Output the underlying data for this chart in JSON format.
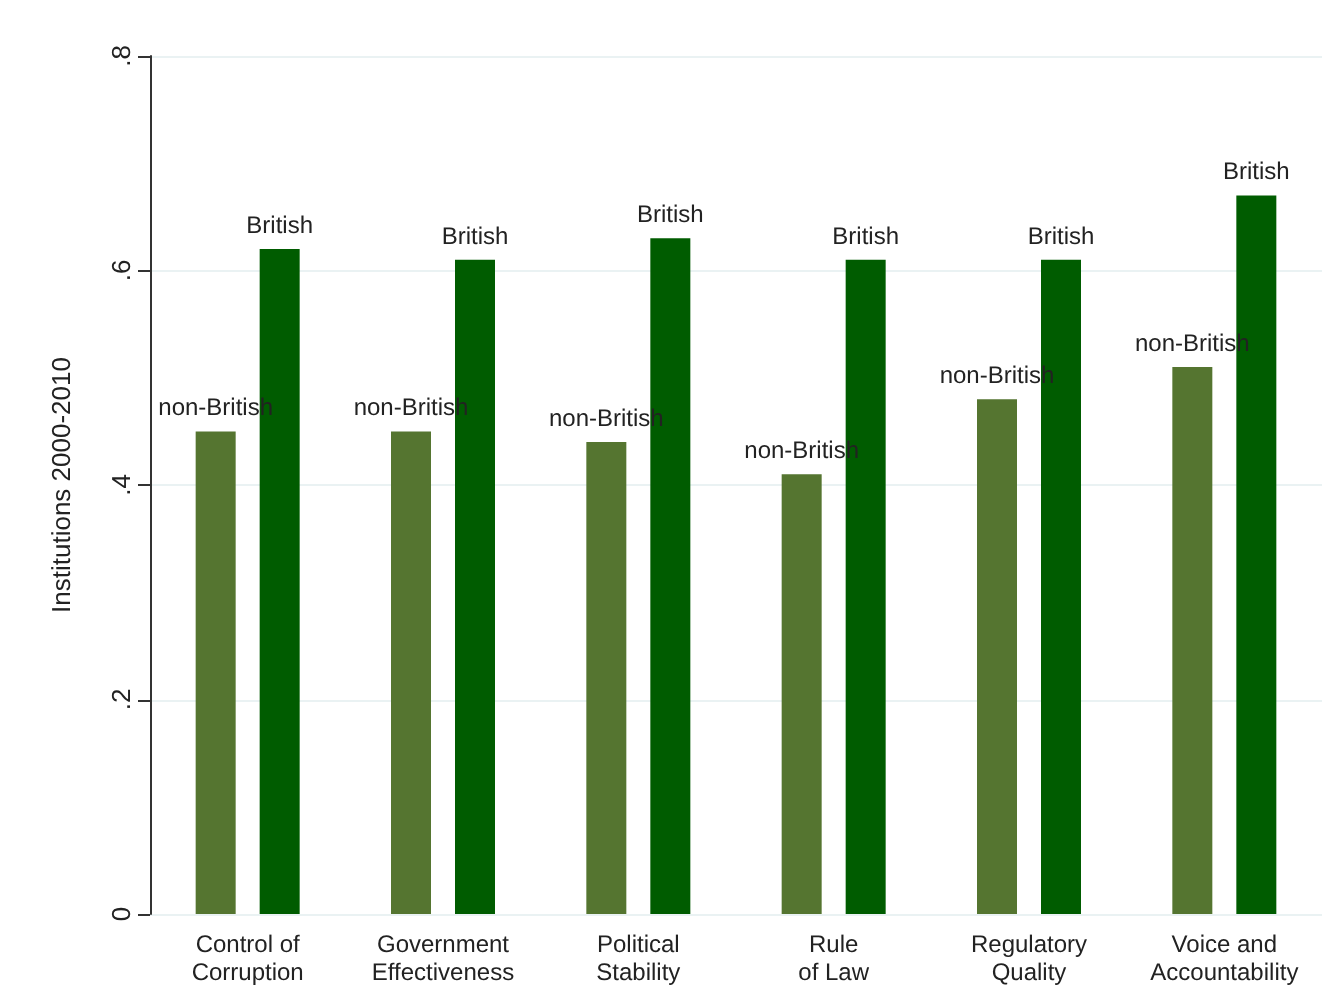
{
  "chart_data": {
    "type": "bar",
    "ylabel": "Institutions 2000-2010",
    "categories": [
      "Control of\nCorruption",
      "Government\nEffectiveness",
      "Political\nStability",
      "Rule\nof Law",
      "Regulatory\nQuality",
      "Voice and\nAccountability"
    ],
    "series": [
      {
        "name": "non-British",
        "color": "#557530",
        "values": [
          0.45,
          0.45,
          0.44,
          0.41,
          0.48,
          0.51
        ]
      },
      {
        "name": "British",
        "color": "#005c00",
        "values": [
          0.62,
          0.61,
          0.63,
          0.61,
          0.61,
          0.67
        ]
      }
    ],
    "ylim": [
      0,
      0.8
    ],
    "yticks": [
      0,
      {
        "value": 0.2,
        "label": ".2"
      },
      {
        "value": 0.4,
        "label": ".4"
      },
      {
        "value": 0.6,
        "label": ".6"
      },
      {
        "value": 0.8,
        "label": ".8"
      }
    ],
    "grid": "y",
    "legend": false
  }
}
